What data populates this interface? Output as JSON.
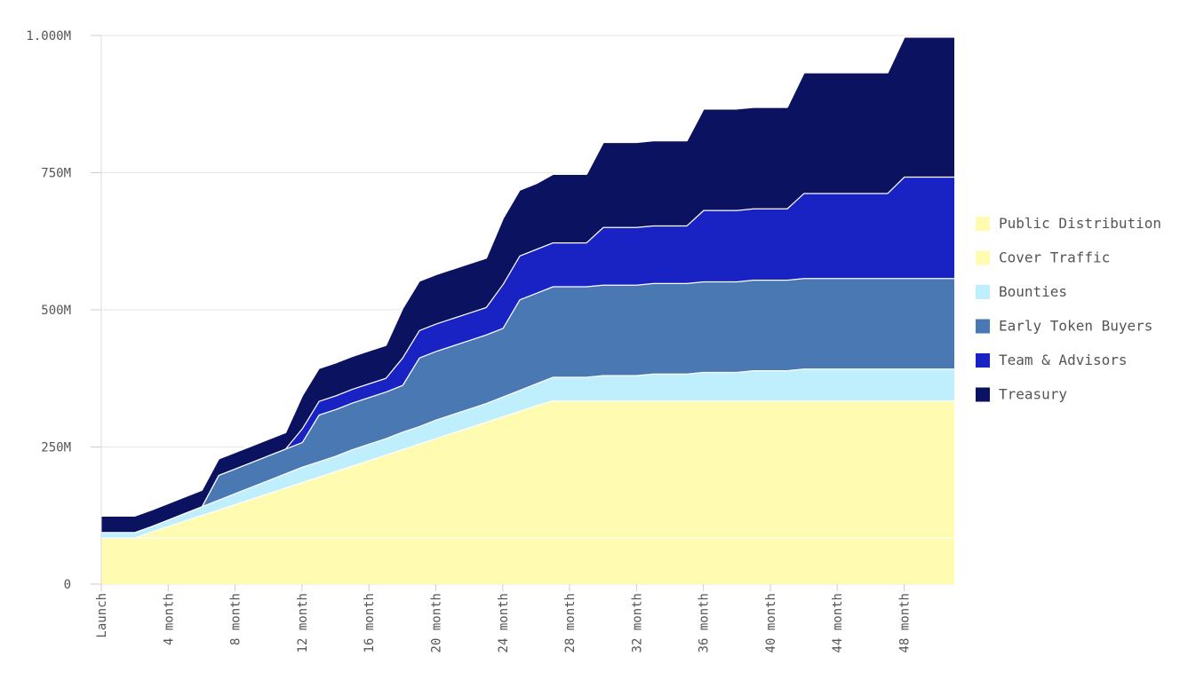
{
  "chart_data": {
    "type": "area",
    "stacked": true,
    "x": [
      "Launch",
      "1 month",
      "2 month",
      "3 month",
      "4 month",
      "5 month",
      "6 month",
      "7 month",
      "8 month",
      "9 month",
      "10 month",
      "11 month",
      "12 month",
      "13 month",
      "14 month",
      "15 month",
      "16 month",
      "17 month",
      "18 month",
      "19 month",
      "20 month",
      "21 month",
      "22 month",
      "23 month",
      "24 month",
      "25 month",
      "26 month",
      "27 month",
      "28 month",
      "29 month",
      "30 month",
      "31 month",
      "32 month",
      "33 month",
      "34 month",
      "35 month",
      "36 month",
      "37 month",
      "38 month",
      "39 month",
      "40 month",
      "41 month",
      "42 month",
      "43 month",
      "44 month",
      "45 month",
      "46 month",
      "47 month",
      "48 month",
      "49 month",
      "50 month",
      "51 month"
    ],
    "x_tick_labels": [
      "Launch",
      "4 month",
      "8 month",
      "12 month",
      "16 month",
      "20 month",
      "24 month",
      "28 month",
      "32 month",
      "36 month",
      "40 month",
      "44 month",
      "48 month"
    ],
    "x_tick_indices": [
      0,
      4,
      8,
      12,
      16,
      20,
      24,
      28,
      32,
      36,
      40,
      44,
      48
    ],
    "y_tick_labels": [
      "0",
      "250M",
      "500M",
      "750M",
      "1.000M"
    ],
    "y_tick_values": [
      0,
      250,
      500,
      750,
      1000
    ],
    "ylim": [
      0,
      1000
    ],
    "legend_position": "right",
    "grid": true,
    "series": [
      {
        "name": "Public Distribution",
        "color": "#fffbb0",
        "values": [
          85,
          85,
          85,
          85,
          85,
          85,
          85,
          85,
          85,
          85,
          85,
          85,
          85,
          85,
          85,
          85,
          85,
          85,
          85,
          85,
          85,
          85,
          85,
          85,
          85,
          85,
          85,
          85,
          85,
          85,
          85,
          85,
          85,
          85,
          85,
          85,
          85,
          85,
          85,
          85,
          85,
          85,
          85,
          85,
          85,
          85,
          85,
          85,
          85,
          85,
          85,
          85
        ]
      },
      {
        "name": "Cover Traffic",
        "color": "#fffbb0",
        "values": [
          0,
          0,
          0,
          11,
          21,
          31,
          41,
          51,
          61,
          71,
          81,
          91,
          101,
          111,
          121,
          131,
          141,
          151,
          161,
          171,
          181,
          191,
          201,
          211,
          221,
          231,
          241,
          250,
          250,
          250,
          250,
          250,
          250,
          250,
          250,
          250,
          250,
          250,
          250,
          250,
          250,
          250,
          250,
          250,
          250,
          250,
          250,
          250,
          250,
          250,
          250,
          250
        ]
      },
      {
        "name": "Bounties",
        "color": "#bfeffc",
        "values": [
          10,
          10,
          10,
          10,
          12,
          14,
          16,
          18,
          20,
          22,
          24,
          26,
          28,
          28,
          28,
          30,
          30,
          30,
          32,
          32,
          34,
          34,
          34,
          34,
          36,
          38,
          40,
          43,
          43,
          43,
          46,
          46,
          46,
          49,
          49,
          49,
          52,
          52,
          52,
          55,
          55,
          55,
          58,
          58,
          58,
          58,
          58,
          58,
          58,
          58,
          58,
          58
        ]
      },
      {
        "name": "Early Token Buyers",
        "color": "#4a78b3",
        "values": [
          0,
          0,
          0,
          0,
          0,
          0,
          0,
          45,
          45,
          45,
          45,
          45,
          45,
          85,
          85,
          85,
          85,
          85,
          85,
          125,
          125,
          125,
          125,
          125,
          125,
          165,
          165,
          165,
          165,
          165,
          165,
          165,
          165,
          165,
          165,
          165,
          165,
          165,
          165,
          165,
          165,
          165,
          165,
          165,
          165,
          165,
          165,
          165,
          165,
          165,
          165,
          165
        ]
      },
      {
        "name": "Team & Advisors",
        "color": "#1923c4",
        "values": [
          0,
          0,
          0,
          0,
          0,
          0,
          0,
          0,
          0,
          0,
          0,
          0,
          25,
          25,
          25,
          25,
          25,
          25,
          50,
          50,
          50,
          50,
          50,
          50,
          80,
          80,
          80,
          80,
          80,
          80,
          105,
          105,
          105,
          105,
          105,
          105,
          130,
          130,
          130,
          130,
          130,
          130,
          155,
          155,
          155,
          155,
          155,
          155,
          185,
          185,
          185,
          185
        ]
      },
      {
        "name": "Treasury",
        "color": "#0b1260",
        "values": [
          30,
          30,
          30,
          30,
          30,
          30,
          30,
          30,
          30,
          30,
          30,
          30,
          60,
          60,
          60,
          60,
          60,
          60,
          90,
          90,
          90,
          90,
          90,
          90,
          120,
          120,
          120,
          125,
          125,
          125,
          155,
          155,
          155,
          155,
          155,
          155,
          185,
          185,
          185,
          185,
          185,
          185,
          220,
          220,
          220,
          220,
          220,
          220,
          255,
          255,
          255,
          255
        ]
      }
    ]
  }
}
